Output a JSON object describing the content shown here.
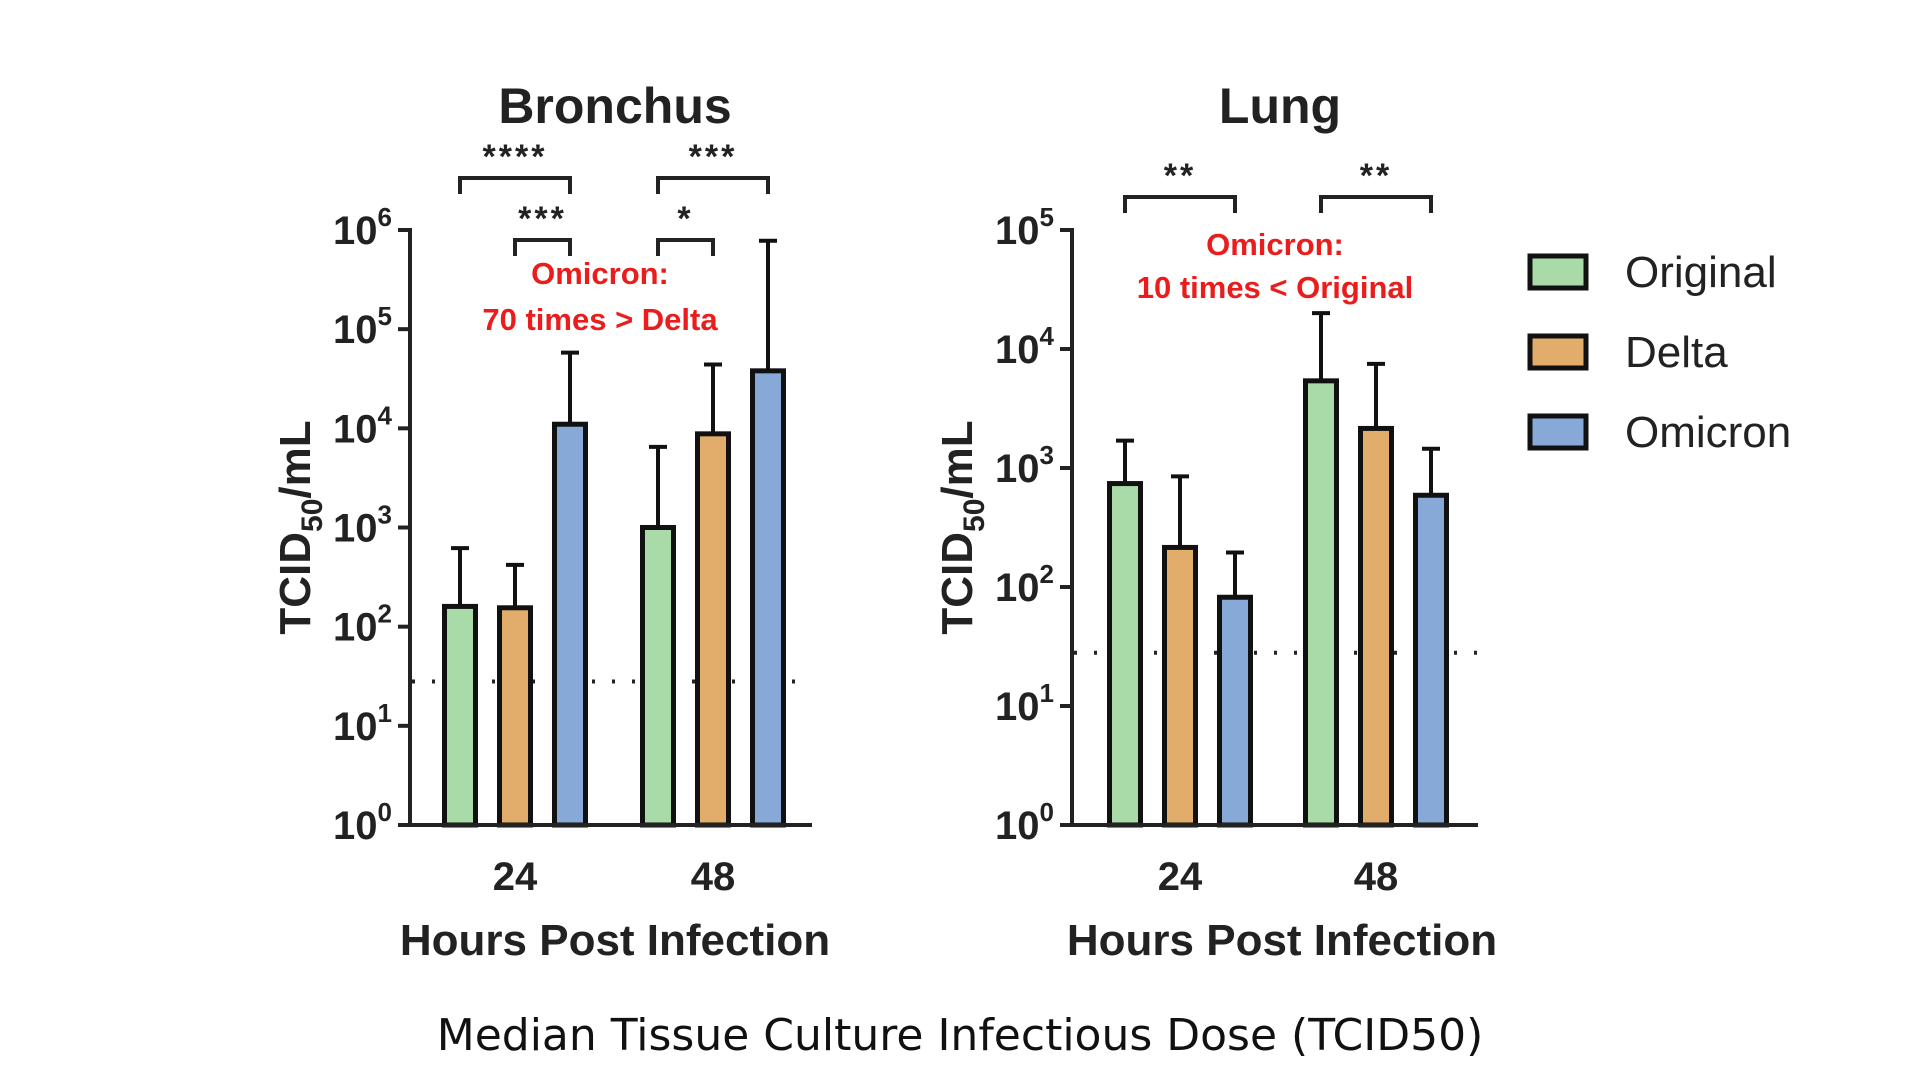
{
  "caption": "Median Tissue Culture Infectious Dose (TCID50)",
  "legend": {
    "position": "right",
    "items": [
      {
        "label": "Original",
        "color": "#a8dba8"
      },
      {
        "label": "Delta",
        "color": "#e2ad6b"
      },
      {
        "label": "Omicron",
        "color": "#86a9d8"
      }
    ]
  },
  "chart_data": [
    {
      "type": "bar",
      "title": "Bronchus",
      "xlabel": "Hours Post Infection",
      "ylabel_main": "TCID",
      "ylabel_sub": "50",
      "ylabel_tail": "/mL",
      "yscale": "log",
      "ylim": [
        1,
        1000000
      ],
      "y_tick_exponents": [
        0,
        1,
        2,
        3,
        4,
        5,
        6
      ],
      "y_tick_base": "10",
      "categories": [
        "24",
        "48"
      ],
      "series": [
        {
          "name": "Original",
          "color": "#a8dba8",
          "values": [
            160,
            1000
          ],
          "error_upper": [
            620,
            6500
          ]
        },
        {
          "name": "Delta",
          "color": "#e2ad6b",
          "values": [
            155,
            8800
          ],
          "error_upper": [
            420,
            44000
          ]
        },
        {
          "name": "Omicron",
          "color": "#86a9d8",
          "values": [
            11000,
            38000
          ],
          "error_upper": [
            58000,
            780000
          ]
        }
      ],
      "detection_limit": 28,
      "annotation": [
        "Omicron:",
        "70 times > Delta"
      ],
      "significance": [
        {
          "category": "24",
          "from": "Original",
          "to": "Omicron",
          "label": "****",
          "level": 1
        },
        {
          "category": "24",
          "from": "Delta",
          "to": "Omicron",
          "label": "***",
          "level": 0
        },
        {
          "category": "48",
          "from": "Original",
          "to": "Omicron",
          "label": "***",
          "level": 1
        },
        {
          "category": "48",
          "from": "Original",
          "to": "Delta",
          "label": "*",
          "level": 0
        }
      ]
    },
    {
      "type": "bar",
      "title": "Lung",
      "xlabel": "Hours Post Infection",
      "ylabel_main": "TCID",
      "ylabel_sub": "50",
      "ylabel_tail": "/mL",
      "yscale": "log",
      "ylim": [
        1,
        100000
      ],
      "y_tick_exponents": [
        0,
        1,
        2,
        3,
        4,
        5
      ],
      "y_tick_base": "10",
      "categories": [
        "24",
        "48"
      ],
      "series": [
        {
          "name": "Original",
          "color": "#a8dba8",
          "values": [
            740,
            5400
          ],
          "error_upper": [
            1700,
            20000
          ]
        },
        {
          "name": "Delta",
          "color": "#e2ad6b",
          "values": [
            215,
            2150
          ],
          "error_upper": [
            850,
            7500
          ]
        },
        {
          "name": "Omicron",
          "color": "#86a9d8",
          "values": [
            82,
            590
          ],
          "error_upper": [
            195,
            1450
          ]
        }
      ],
      "detection_limit": 28,
      "annotation": [
        "Omicron:",
        "10 times < Original"
      ],
      "significance": [
        {
          "category": "24",
          "from": "Original",
          "to": "Omicron",
          "label": "**",
          "level": 0
        },
        {
          "category": "48",
          "from": "Original",
          "to": "Omicron",
          "label": "**",
          "level": 0
        }
      ]
    }
  ]
}
